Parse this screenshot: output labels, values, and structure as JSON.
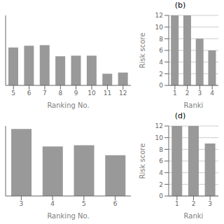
{
  "chart_data": [
    {
      "type": "bar",
      "categories": [
        "5",
        "6",
        "7",
        "8",
        "9",
        "10",
        "11",
        "12"
      ],
      "values": [
        6.5,
        6.8,
        6.9,
        5.0,
        5.1,
        5.1,
        2.0,
        2.2
      ],
      "xlabel": "Ranking No.",
      "ylim": [
        0,
        12
      ],
      "grid": false,
      "tick_labels": "x",
      "color": "#999999"
    },
    {
      "type": "bar",
      "title": "(b)",
      "categories": [
        "1",
        "2",
        "3",
        "4"
      ],
      "values": [
        12.0,
        12.0,
        8.0,
        6.0
      ],
      "xlabel": "Ranki",
      "ylabel": "Risk score",
      "ylim": [
        0,
        12
      ],
      "yticks": [
        0,
        2,
        4,
        6,
        8,
        10,
        12
      ],
      "grid": true,
      "color": "#999999"
    },
    {
      "type": "bar",
      "categories": [
        "3",
        "4",
        "5",
        "6"
      ],
      "values": [
        11.5,
        8.5,
        8.7,
        7.0
      ],
      "xlabel": "Ranking No.",
      "ylim": [
        0,
        12
      ],
      "grid": false,
      "tick_labels": "x",
      "color": "#999999"
    },
    {
      "type": "bar",
      "title": "(d)",
      "categories": [
        "1",
        "2",
        "3"
      ],
      "values": [
        12.0,
        12.0,
        9.0
      ],
      "xlabel": "Ranki",
      "ylabel": "Risk score",
      "ylim": [
        0,
        12
      ],
      "yticks": [
        0,
        2,
        4,
        6,
        8,
        10,
        12
      ],
      "grid": true,
      "color": "#999999"
    }
  ]
}
